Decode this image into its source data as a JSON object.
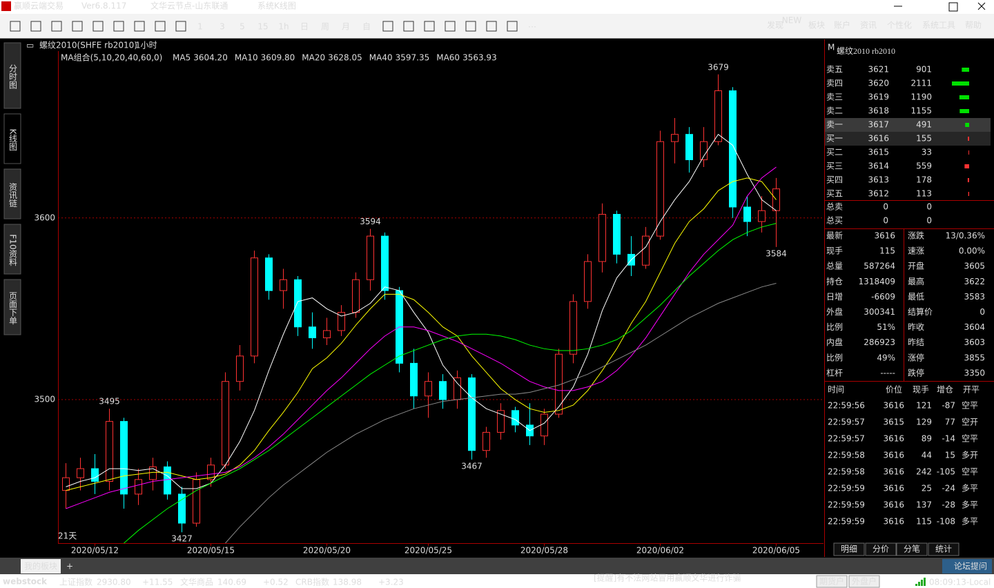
{
  "window": {
    "app": "赢顺云端交易",
    "version": "Ver6.8.117",
    "server": "文华云节点-山东联通",
    "page": "系统K线图"
  },
  "toolbar": {
    "periods": [
      "1",
      "3",
      "5",
      "15",
      "1h",
      "日",
      "周",
      "月",
      "自"
    ],
    "menu": [
      "发现",
      "板块",
      "账户",
      "资讯",
      "个性化",
      "系统工具",
      "帮助"
    ],
    "badge": "NEW"
  },
  "side_tabs": [
    "分时图",
    "K线图",
    "资讯链",
    "F10资料",
    "页面下单"
  ],
  "chart_data": {
    "type": "candlestick",
    "title": "螺纹2010(SHFE rb2010)",
    "period": "1小时",
    "indicator": "MA组合(5,10,20,40,60,0)",
    "footnote": "21天",
    "up_color": "#ff3232",
    "down_color": "#00ffff",
    "categories": [
      null,
      null,
      "2020/05/12",
      null,
      null,
      null,
      null,
      null,
      null,
      null,
      "2020/05/15",
      null,
      null,
      null,
      null,
      null,
      null,
      null,
      "2020/05/20",
      null,
      null,
      null,
      null,
      null,
      null,
      "2020/05/25",
      null,
      null,
      null,
      null,
      null,
      null,
      null,
      "2020/05/28",
      null,
      null,
      null,
      null,
      null,
      null,
      null,
      "2020/06/02",
      null,
      null,
      null,
      null,
      null,
      null,
      null,
      "2020/06/05"
    ],
    "open": [
      3450,
      3457,
      3462,
      3455,
      3488,
      3448,
      3456,
      3463,
      3448,
      3432,
      3456,
      3464,
      3510,
      3524,
      3578,
      3560,
      3566,
      3540,
      3534,
      3538,
      3548,
      3566,
      3590,
      3560,
      3520,
      3502,
      3510,
      3500,
      3512,
      3472,
      3482,
      3494,
      3486,
      3480,
      3492,
      3525,
      3554,
      3576,
      3602,
      3580,
      3574,
      3590,
      3642,
      3646,
      3632,
      3642,
      3670,
      3606,
      3598,
      3604
    ],
    "high": [
      3465,
      3468,
      3470,
      3495,
      3490,
      3462,
      3468,
      3466,
      3452,
      3460,
      3468,
      3515,
      3530,
      3582,
      3580,
      3572,
      3568,
      3548,
      3545,
      3552,
      3570,
      3594,
      3592,
      3562,
      3528,
      3515,
      3514,
      3516,
      3514,
      3485,
      3498,
      3496,
      3498,
      3495,
      3528,
      3558,
      3580,
      3608,
      3604,
      3590,
      3595,
      3648,
      3655,
      3650,
      3650,
      3679,
      3672,
      3612,
      3612,
      3622
    ],
    "low": [
      3440,
      3450,
      3448,
      3450,
      3440,
      3442,
      3450,
      3445,
      3427,
      3430,
      3452,
      3462,
      3505,
      3520,
      3555,
      3550,
      3535,
      3528,
      3530,
      3535,
      3545,
      3560,
      3555,
      3515,
      3495,
      3490,
      3495,
      3495,
      3467,
      3468,
      3478,
      3482,
      3475,
      3475,
      3490,
      3520,
      3550,
      3570,
      3575,
      3568,
      3572,
      3588,
      3630,
      3625,
      3628,
      3640,
      3600,
      3590,
      3592,
      3584
    ],
    "close": [
      3457,
      3462,
      3455,
      3488,
      3448,
      3456,
      3463,
      3448,
      3432,
      3456,
      3464,
      3510,
      3524,
      3578,
      3560,
      3566,
      3540,
      3534,
      3538,
      3548,
      3566,
      3590,
      3560,
      3520,
      3502,
      3510,
      3500,
      3512,
      3472,
      3482,
      3494,
      3486,
      3480,
      3492,
      3525,
      3554,
      3576,
      3602,
      3580,
      3574,
      3590,
      3642,
      3646,
      3632,
      3642,
      3670,
      3606,
      3598,
      3604,
      3616
    ],
    "series": [
      {
        "name": "MA5",
        "legend_label": "3604.20",
        "color": "#ffffff",
        "values": [
          3452,
          3455,
          3457,
          3462,
          3462,
          3461,
          3462,
          3458,
          3451,
          3451,
          3454,
          3464,
          3477,
          3494,
          3516,
          3536,
          3554,
          3556,
          3550,
          3546,
          3548,
          3553,
          3562,
          3560,
          3548,
          3537,
          3519,
          3509,
          3501,
          3495,
          3492,
          3489,
          3483,
          3487,
          3496,
          3507,
          3525,
          3549,
          3567,
          3577,
          3584,
          3598,
          3610,
          3620,
          3634,
          3646,
          3640,
          3624,
          3610,
          3604
        ]
      },
      {
        "name": "MA10",
        "legend_label": "3609.80",
        "color": "#ffff00",
        "values": [
          3450,
          3452,
          3454,
          3456,
          3458,
          3459,
          3460,
          3460,
          3458,
          3456,
          3457,
          3459,
          3464,
          3472,
          3483,
          3493,
          3504,
          3517,
          3523,
          3531,
          3541,
          3550,
          3558,
          3558,
          3555,
          3548,
          3540,
          3535,
          3524,
          3515,
          3506,
          3500,
          3495,
          3493,
          3494,
          3497,
          3505,
          3516,
          3528,
          3542,
          3554,
          3570,
          3586,
          3598,
          3605,
          3615,
          3620,
          3622,
          3620,
          3610
        ]
      },
      {
        "name": "MA20",
        "legend_label": "3628.05",
        "color": "#ff00ff",
        "values": [
          3440,
          3443,
          3446,
          3449,
          3451,
          3453,
          3455,
          3456,
          3457,
          3458,
          3459,
          3460,
          3463,
          3468,
          3474,
          3481,
          3489,
          3497,
          3505,
          3512,
          3520,
          3528,
          3535,
          3540,
          3540,
          3538,
          3535,
          3532,
          3528,
          3524,
          3520,
          3515,
          3510,
          3507,
          3505,
          3505,
          3507,
          3510,
          3516,
          3524,
          3534,
          3546,
          3558,
          3570,
          3580,
          3588,
          3596,
          3612,
          3622,
          3628
        ]
      },
      {
        "name": "MA40",
        "legend_label": "3597.35",
        "color": "#00ff00",
        "values": [
          null,
          null,
          null,
          null,
          3421,
          3428,
          3434,
          3440,
          3445,
          3450,
          3454,
          3458,
          3462,
          3467,
          3472,
          3478,
          3484,
          3490,
          3496,
          3502,
          3508,
          3514,
          3519,
          3524,
          3527,
          3530,
          3533,
          3535,
          3536,
          3536,
          3535,
          3533,
          3530,
          3528,
          3527,
          3527,
          3528,
          3530,
          3533,
          3538,
          3545,
          3552,
          3560,
          3568,
          3575,
          3582,
          3588,
          3592,
          3595,
          3597
        ]
      },
      {
        "name": "MA60",
        "legend_label": "3563.93",
        "color": "#8a8a8a",
        "values": [
          null,
          null,
          null,
          null,
          null,
          null,
          null,
          null,
          null,
          null,
          null,
          3421,
          3430,
          3438,
          3446,
          3453,
          3459,
          3465,
          3471,
          3476,
          3481,
          3485,
          3489,
          3492,
          3495,
          3497,
          3499,
          3500,
          3501,
          3502,
          3503,
          3503,
          3504,
          3506,
          3508,
          3511,
          3514,
          3518,
          3522,
          3526,
          3530,
          3535,
          3540,
          3545,
          3549,
          3553,
          3556,
          3559,
          3562,
          3564
        ]
      }
    ],
    "annotations": [
      {
        "label": "3495",
        "index": 3,
        "side": "high"
      },
      {
        "label": "3427",
        "index": 8,
        "side": "low"
      },
      {
        "label": "3594",
        "index": 21,
        "side": "high"
      },
      {
        "label": "3467",
        "index": 28,
        "side": "low"
      },
      {
        "label": "3679",
        "index": 45,
        "side": "high"
      },
      {
        "label": "3584",
        "index": 49,
        "side": "low"
      }
    ],
    "ylim": [
      3421,
      3685
    ],
    "yticks": [
      3500,
      3600
    ],
    "grid": true
  },
  "order_book": {
    "title": "螺纹2010  rb2010",
    "rows": [
      {
        "label": "卖五",
        "price": 3621,
        "volume": 901,
        "color": "#00e000"
      },
      {
        "label": "卖四",
        "price": 3620,
        "volume": 2111,
        "color": "#00e000"
      },
      {
        "label": "卖三",
        "price": 3619,
        "volume": 1190,
        "color": "#00e000"
      },
      {
        "label": "卖二",
        "price": 3618,
        "volume": 1155,
        "color": "#00e000"
      },
      {
        "label": "卖一",
        "price": 3617,
        "volume": 491,
        "color": "#00e000"
      },
      {
        "label": "买一",
        "price": 3616,
        "volume": 155,
        "color": "#ff3232"
      },
      {
        "label": "买二",
        "price": 3615,
        "volume": 33,
        "color": "#ff3232"
      },
      {
        "label": "买三",
        "price": 3614,
        "volume": 559,
        "color": "#ff3232"
      },
      {
        "label": "买四",
        "price": 3613,
        "volume": 178,
        "color": "#ff3232"
      },
      {
        "label": "买五",
        "price": 3612,
        "volume": 113,
        "color": "#ff3232"
      }
    ],
    "totals": [
      {
        "label": "总卖",
        "a": 0,
        "b": 0
      },
      {
        "label": "总买",
        "a": 0,
        "b": 0
      }
    ]
  },
  "stats": [
    {
      "label": "最新",
      "value": "3616",
      "color": "#ff3232"
    },
    {
      "label": "涨跌",
      "value": "13/0.36%",
      "color": "#ff3232"
    },
    {
      "label": "现手",
      "value": "115",
      "color": "#ffff00"
    },
    {
      "label": "速涨",
      "value": "0.00%",
      "color": "#ffffff"
    },
    {
      "label": "总量",
      "value": "587264",
      "color": "#ffff00"
    },
    {
      "label": "开盘",
      "value": "3605",
      "color": "#ff3232"
    },
    {
      "label": "持仓",
      "value": "1318409",
      "color": "#ffff00"
    },
    {
      "label": "最高",
      "value": "3622",
      "color": "#ff3232"
    },
    {
      "label": "日增",
      "value": "-6609",
      "color": "#ffff00"
    },
    {
      "label": "最低",
      "value": "3583",
      "color": "#00e000"
    },
    {
      "label": "外盘",
      "value": "300341",
      "color": "#ffff00"
    },
    {
      "label": "结算价",
      "value": "0",
      "color": "#ffffff"
    },
    {
      "label": "比例",
      "value": "51%",
      "color": "#ffff00"
    },
    {
      "label": "昨收",
      "value": "3604",
      "color": "#ffffff"
    },
    {
      "label": "内盘",
      "value": "286923",
      "color": "#ffff00"
    },
    {
      "label": "昨结",
      "value": "3603",
      "color": "#ffffff"
    },
    {
      "label": "比例",
      "value": "49%",
      "color": "#ffff00"
    },
    {
      "label": "涨停",
      "value": "3855",
      "color": "#ff3232"
    },
    {
      "label": "杠杆",
      "value": "-----",
      "color": "#ffffff"
    },
    {
      "label": "跌停",
      "value": "3350",
      "color": "#00e000"
    }
  ],
  "ticks": {
    "headers": [
      "时间",
      "价位",
      "现手",
      "增仓",
      "开平"
    ],
    "rows": [
      {
        "time": "22:59:56",
        "price": "3616",
        "volume": "121",
        "oi": "-87",
        "type": "空平",
        "color": "#ff3232"
      },
      {
        "time": "22:59:57",
        "price": "3615",
        "volume": "129",
        "oi": "77",
        "type": "空开",
        "color": "#00e000"
      },
      {
        "time": "22:59:57",
        "price": "3616",
        "volume": "89",
        "oi": "-14",
        "type": "空平",
        "color": "#ff3232"
      },
      {
        "time": "22:59:58",
        "price": "3616",
        "volume": "44",
        "oi": "15",
        "type": "多开",
        "color": "#ff3232"
      },
      {
        "time": "22:59:58",
        "price": "3616",
        "volume": "242",
        "oi": "-105",
        "type": "空平",
        "color": "#ff3232"
      },
      {
        "time": "22:59:59",
        "price": "3616",
        "volume": "25",
        "oi": "-24",
        "type": "多平",
        "color": "#00e000"
      },
      {
        "time": "22:59:59",
        "price": "3616",
        "volume": "137",
        "oi": "-28",
        "type": "多平",
        "color": "#ff3232"
      },
      {
        "time": "22:59:59",
        "price": "3616",
        "volume": "115",
        "oi": "-108",
        "type": "多平",
        "color": "#ff3232"
      }
    ]
  },
  "panel_tabs": [
    "明细",
    "分价",
    "分笔",
    "统计"
  ],
  "bottom": {
    "board": "我的板块",
    "add": "+"
  },
  "status": {
    "brand": "webstock",
    "indices": [
      {
        "name": "上证指数",
        "value": "2930.80",
        "change": "+11.55"
      },
      {
        "name": "文华商品",
        "value": "140.69",
        "change": "+0.52"
      },
      {
        "name": "CRB指数",
        "value": "138.98",
        "change": "+3.23"
      }
    ],
    "ticker": "[提醒]有不法网站冒用赢顺文华进行诈骗",
    "buttons": [
      "期货户",
      "外盘户"
    ],
    "clock": "08:09:13-Local",
    "forum": "论坛提问"
  }
}
